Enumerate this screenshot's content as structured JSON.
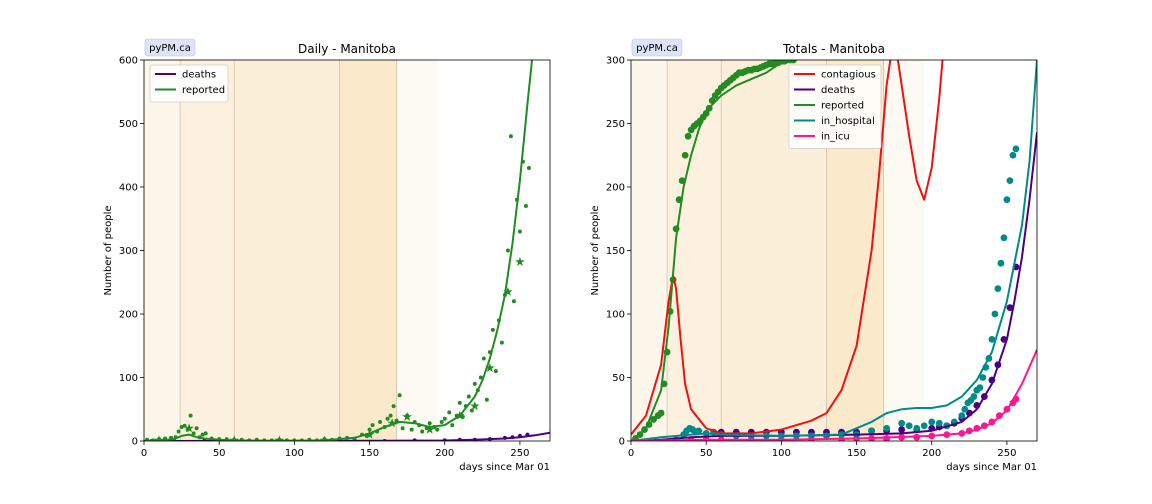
{
  "chart_data": [
    {
      "type": "line",
      "title": "Daily - Manitoba",
      "badge": "pyPM.ca",
      "xlabel": "days since Mar 01",
      "ylabel": "Number of people",
      "xlim": [
        0,
        270
      ],
      "ylim": [
        0,
        600
      ],
      "xticks": [
        0,
        50,
        100,
        150,
        200,
        250
      ],
      "yticks": [
        0,
        100,
        200,
        300,
        400,
        500,
        600
      ],
      "grid": false,
      "legend_position": "top-left",
      "shaded_periods": [
        {
          "from": 0,
          "to": 24,
          "color": "#fdf6ea"
        },
        {
          "from": 24,
          "to": 60,
          "color": "#fcf1de"
        },
        {
          "from": 60,
          "to": 130,
          "color": "#fcefd9"
        },
        {
          "from": 130,
          "to": 168,
          "color": "#fbe9cc"
        },
        {
          "from": 168,
          "to": 195,
          "color": "#fdfaf3"
        }
      ],
      "legend": [
        {
          "name": "deaths",
          "color": "#4b0082"
        },
        {
          "name": "reported",
          "color": "#228b22"
        }
      ],
      "series": [
        {
          "name": "deaths",
          "color": "#4b0082",
          "x": [
            0,
            50,
            100,
            150,
            200,
            220,
            240,
            250,
            260,
            270
          ],
          "y": [
            0,
            0.2,
            0.2,
            0.3,
            0.8,
            2,
            4,
            6,
            9,
            13
          ]
        },
        {
          "name": "reported",
          "color": "#228b22",
          "x": [
            0,
            10,
            20,
            25,
            30,
            35,
            40,
            50,
            60,
            80,
            100,
            120,
            140,
            150,
            160,
            170,
            180,
            190,
            200,
            210,
            220,
            225,
            230,
            235,
            240,
            245,
            250,
            255,
            258,
            260
          ],
          "y": [
            0,
            1,
            3,
            8,
            10,
            6,
            4,
            2,
            1,
            0.5,
            0.5,
            1,
            5,
            12,
            22,
            30,
            28,
            22,
            25,
            40,
            70,
            95,
            130,
            175,
            230,
            310,
            410,
            530,
            600,
            640
          ]
        }
      ],
      "points": {
        "reported": {
          "x": [
            2,
            6,
            10,
            14,
            18,
            21,
            23,
            25,
            27,
            29,
            31,
            33,
            35,
            37,
            39,
            41,
            45,
            50,
            55,
            60,
            65,
            70,
            75,
            80,
            85,
            90,
            95,
            100,
            105,
            110,
            115,
            120,
            125,
            130,
            135,
            140,
            145,
            148,
            150,
            152,
            155,
            157,
            160,
            162,
            164,
            166,
            168,
            170,
            172,
            175,
            178,
            180,
            183,
            185,
            188,
            190,
            193,
            195,
            198,
            200,
            203,
            205,
            208,
            210,
            212,
            214,
            216,
            218,
            220,
            222,
            224,
            226,
            228,
            230,
            232,
            234,
            236,
            238,
            240,
            242,
            244,
            246,
            248,
            250,
            252,
            254,
            256
          ],
          "y": [
            2,
            1,
            3,
            4,
            5,
            6,
            15,
            22,
            24,
            18,
            40,
            12,
            20,
            6,
            10,
            12,
            4,
            3,
            3,
            2,
            2,
            1,
            2,
            1,
            1,
            2,
            1,
            1,
            1,
            2,
            1,
            3,
            2,
            4,
            5,
            3,
            10,
            8,
            18,
            25,
            15,
            30,
            22,
            35,
            40,
            55,
            32,
            72,
            20,
            40,
            18,
            30,
            25,
            15,
            20,
            28,
            22,
            18,
            30,
            35,
            45,
            25,
            40,
            60,
            38,
            55,
            70,
            48,
            90,
            80,
            100,
            130,
            65,
            140,
            175,
            110,
            190,
            155,
            230,
            300,
            480,
            220,
            380,
            330,
            440,
            370,
            430
          ]
        },
        "reported_stars": {
          "x": [
            10,
            30,
            60,
            90,
            120,
            150,
            165,
            175,
            190,
            210,
            220,
            230,
            242,
            250
          ],
          "y": [
            1,
            20,
            1,
            1,
            1,
            10,
            28,
            38,
            18,
            40,
            55,
            115,
            235,
            282
          ]
        },
        "deaths": {
          "x": [
            5,
            20,
            40,
            60,
            80,
            100,
            120,
            140,
            160,
            180,
            200,
            210,
            220,
            230,
            240,
            245,
            250,
            255
          ],
          "y": [
            0,
            0,
            0,
            1,
            0,
            0,
            0,
            1,
            0,
            1,
            1,
            2,
            2,
            3,
            5,
            6,
            8,
            10
          ]
        }
      }
    },
    {
      "type": "line",
      "title": "Totals - Manitoba",
      "badge": "pyPM.ca",
      "xlabel": "days since Mar 01",
      "ylabel": "Number of people",
      "xlim": [
        0,
        270
      ],
      "ylim": [
        0,
        300
      ],
      "xticks": [
        0,
        50,
        100,
        150,
        200,
        250
      ],
      "yticks": [
        0,
        50,
        100,
        150,
        200,
        250,
        300
      ],
      "grid": false,
      "legend_position": "top-center",
      "shaded_periods": [
        {
          "from": 0,
          "to": 24,
          "color": "#fdf6ea"
        },
        {
          "from": 24,
          "to": 60,
          "color": "#fcf1de"
        },
        {
          "from": 60,
          "to": 130,
          "color": "#fcefd9"
        },
        {
          "from": 130,
          "to": 168,
          "color": "#fbe9cc"
        },
        {
          "from": 168,
          "to": 195,
          "color": "#fdfaf3"
        }
      ],
      "legend": [
        {
          "name": "contagious",
          "color": "#ee1111"
        },
        {
          "name": "deaths",
          "color": "#4b0082"
        },
        {
          "name": "reported",
          "color": "#228b22"
        },
        {
          "name": "in_hospital",
          "color": "#008b8b"
        },
        {
          "name": "in_icu",
          "color": "#ff1493"
        }
      ],
      "series": [
        {
          "name": "contagious",
          "color": "#ee1111",
          "x": [
            0,
            10,
            20,
            25,
            28,
            30,
            33,
            36,
            40,
            50,
            60,
            80,
            100,
            120,
            130,
            140,
            150,
            160,
            165,
            170,
            175,
            180,
            185,
            190,
            195,
            200,
            205,
            210
          ],
          "y": [
            5,
            20,
            60,
            110,
            130,
            120,
            80,
            45,
            25,
            10,
            6,
            6,
            9,
            16,
            22,
            40,
            75,
            150,
            210,
            280,
            320,
            280,
            240,
            205,
            190,
            215,
            270,
            340
          ]
        },
        {
          "name": "deaths",
          "color": "#4b0082",
          "x": [
            0,
            20,
            40,
            60,
            100,
            150,
            180,
            200,
            220,
            230,
            240,
            250,
            255,
            260,
            265,
            270
          ],
          "y": [
            0,
            1,
            3,
            4,
            4,
            5,
            6,
            8,
            15,
            25,
            45,
            80,
            110,
            145,
            190,
            243
          ]
        },
        {
          "name": "reported",
          "color": "#228b22",
          "x": [
            0,
            10,
            20,
            25,
            30,
            35,
            40,
            45,
            50,
            60,
            70,
            80,
            90,
            100,
            110
          ],
          "y": [
            0,
            10,
            40,
            90,
            160,
            200,
            225,
            245,
            260,
            272,
            280,
            285,
            290,
            298,
            305
          ]
        },
        {
          "name": "in_hospital",
          "color": "#008b8b",
          "x": [
            0,
            20,
            40,
            50,
            60,
            100,
            140,
            160,
            170,
            180,
            190,
            200,
            210,
            220,
            230,
            240,
            250,
            260,
            265,
            270
          ],
          "y": [
            0,
            3,
            5,
            6,
            5,
            4,
            5,
            15,
            22,
            25,
            26,
            26,
            28,
            35,
            48,
            70,
            110,
            170,
            220,
            300
          ]
        },
        {
          "name": "in_icu",
          "color": "#ff1493",
          "x": [
            0,
            50,
            100,
            150,
            200,
            220,
            230,
            240,
            250,
            260,
            270
          ],
          "y": [
            0,
            1,
            1,
            2,
            4,
            6,
            9,
            14,
            24,
            45,
            72
          ]
        }
      ],
      "points": {
        "reported": {
          "x": [
            3,
            6,
            9,
            12,
            15,
            18,
            20,
            22,
            24,
            26,
            28,
            30,
            32,
            34,
            36,
            38,
            40,
            42,
            44,
            46,
            48,
            50,
            52,
            54,
            56,
            58,
            60,
            62,
            64,
            66,
            68,
            70,
            72,
            74,
            76,
            78,
            80,
            82,
            84,
            86,
            88,
            90,
            92,
            94,
            96,
            98,
            100,
            102,
            104,
            106,
            108
          ],
          "y": [
            2,
            5,
            9,
            13,
            17,
            20,
            22,
            45,
            70,
            102,
            127,
            167,
            190,
            205,
            225,
            240,
            245,
            248,
            250,
            252,
            255,
            258,
            262,
            268,
            272,
            275,
            278,
            280,
            282,
            284,
            286,
            288,
            290,
            290,
            291,
            292,
            292,
            293,
            293,
            294,
            295,
            296,
            297,
            297,
            298,
            298,
            299,
            299,
            300,
            300,
            300
          ]
        },
        "in_hospital": {
          "x": [
            35,
            37,
            39,
            41,
            43,
            45,
            50,
            55,
            60,
            70,
            80,
            90,
            100,
            110,
            120,
            130,
            140,
            150,
            160,
            170,
            180,
            185,
            190,
            195,
            200,
            205,
            210,
            215,
            220,
            222,
            224,
            226,
            228,
            230,
            232,
            234,
            236,
            238,
            240,
            242,
            244,
            246,
            248,
            250,
            252,
            254,
            256
          ],
          "y": [
            5,
            8,
            10,
            9,
            7,
            8,
            6,
            7,
            5,
            4,
            4,
            4,
            4,
            4,
            4,
            4,
            5,
            5,
            8,
            10,
            14,
            12,
            10,
            12,
            15,
            14,
            12,
            15,
            20,
            25,
            30,
            32,
            35,
            40,
            42,
            50,
            58,
            65,
            80,
            100,
            120,
            140,
            160,
            190,
            205,
            225,
            230
          ]
        },
        "deaths": {
          "x": [
            60,
            70,
            80,
            90,
            100,
            110,
            120,
            130,
            140,
            150,
            160,
            170,
            180,
            190,
            200,
            205,
            210,
            215,
            220,
            225,
            230,
            235,
            240,
            244,
            248,
            252,
            256
          ],
          "y": [
            7,
            7,
            7,
            7,
            7,
            7,
            7,
            7,
            7,
            7,
            8,
            8,
            9,
            9,
            10,
            11,
            12,
            14,
            18,
            22,
            28,
            35,
            48,
            60,
            80,
            105,
            137
          ]
        },
        "in_icu": {
          "x": [
            30,
            40,
            50,
            60,
            80,
            100,
            120,
            140,
            150,
            160,
            170,
            180,
            190,
            200,
            210,
            220,
            225,
            230,
            235,
            240,
            245,
            250,
            254,
            256
          ],
          "y": [
            1,
            1,
            1,
            1,
            1,
            1,
            1,
            1,
            2,
            2,
            2,
            3,
            3,
            4,
            5,
            6,
            8,
            10,
            12,
            15,
            20,
            25,
            30,
            33
          ]
        }
      }
    }
  ]
}
